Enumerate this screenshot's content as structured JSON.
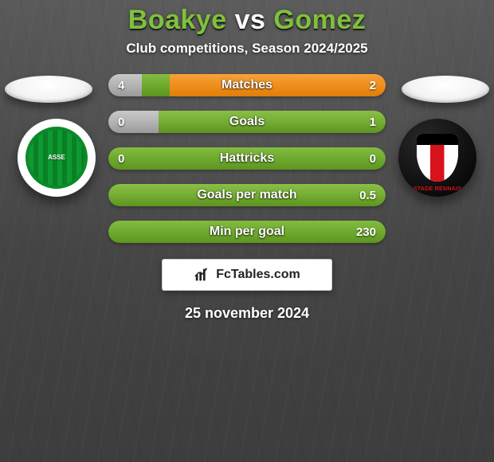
{
  "title": {
    "p1": "Boakye",
    "vs": "vs",
    "p2": "Gomez",
    "color_players": "#7fc13b",
    "color_vs": "#ffffff",
    "fontsize": 34
  },
  "subtitle": "Club competitions, Season 2024/2025",
  "date": "25 november 2024",
  "brand": "FcTables.com",
  "players": {
    "left": {
      "club_name": "Saint-Étienne",
      "badge_text": "ASSE"
    },
    "right": {
      "club_name": "Stade Rennais",
      "badge_text": "STADE RENNAIS"
    }
  },
  "bar_style": {
    "track_bg": "linear-gradient(180deg,#82bc3f 0%,#6faa2f 50%,#5e951f 100%)",
    "track_bg_alt": "linear-gradient(180deg,#8bbf46 0%,#74ad34 50%,#5e931f 100%)",
    "left_fill": "linear-gradient(180deg,#c8c8c8 0%,#b4b4b4 50%,#9a9a9a 100%)",
    "right_fill_orange": "linear-gradient(180deg,#f6a13a 0%,#ef8f1d 50%,#e07e0a 100%)",
    "height": 28,
    "radius": 14,
    "label_fontsize": 16,
    "value_fontsize": 15
  },
  "stats": [
    {
      "label": "Matches",
      "left_val": "4",
      "right_val": "2",
      "left_pct": 12,
      "right_pct": 78,
      "left_color": "gray",
      "right_color": "orange"
    },
    {
      "label": "Goals",
      "left_val": "0",
      "right_val": "1",
      "left_pct": 18,
      "right_pct": 0,
      "left_color": "gray",
      "right_color": "none"
    },
    {
      "label": "Hattricks",
      "left_val": "0",
      "right_val": "0",
      "left_pct": 0,
      "right_pct": 0,
      "left_color": "none",
      "right_color": "none"
    },
    {
      "label": "Goals per match",
      "left_val": "",
      "right_val": "0.5",
      "left_pct": 0,
      "right_pct": 0,
      "left_color": "none",
      "right_color": "none"
    },
    {
      "label": "Min per goal",
      "left_val": "",
      "right_val": "230",
      "left_pct": 0,
      "right_pct": 0,
      "left_color": "none",
      "right_color": "none"
    }
  ]
}
